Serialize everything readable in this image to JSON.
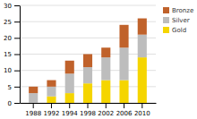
{
  "chart_data": {
    "type": "bar",
    "stacked": true,
    "categories": [
      "1988",
      "1992",
      "1994",
      "1998",
      "2002",
      "2006",
      "2010"
    ],
    "series": [
      {
        "name": "Gold",
        "color": "#F5D500",
        "values": [
          0,
          2,
          3,
          6,
          7,
          7,
          14
        ]
      },
      {
        "name": "Silver",
        "color": "#BDBDBD",
        "values": [
          3,
          3,
          6,
          5,
          7,
          10,
          7
        ]
      },
      {
        "name": "Bronze",
        "color": "#C0622B",
        "values": [
          2,
          2,
          4,
          4,
          3,
          7,
          5
        ]
      }
    ],
    "ylim": [
      0,
      30
    ],
    "yticks": [
      0,
      5,
      10,
      15,
      20,
      25,
      30
    ],
    "grid": true,
    "legend": "right"
  }
}
